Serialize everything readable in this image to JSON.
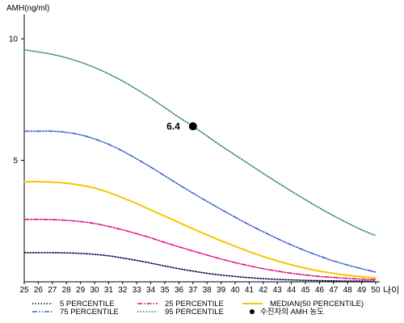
{
  "chart_data": {
    "type": "line",
    "ylabel": "AMH(ng/ml)",
    "xlabel": "나이",
    "xlim": [
      25,
      50
    ],
    "ylim": [
      0,
      11
    ],
    "x_ticks": [
      25,
      26,
      27,
      28,
      29,
      30,
      31,
      32,
      33,
      34,
      35,
      36,
      37,
      38,
      39,
      40,
      41,
      42,
      43,
      44,
      45,
      46,
      47,
      48,
      49,
      50
    ],
    "y_ticks": [
      5,
      10
    ],
    "x": [
      25,
      26,
      27,
      28,
      29,
      30,
      31,
      32,
      33,
      34,
      35,
      36,
      37,
      38,
      39,
      40,
      41,
      42,
      43,
      44,
      45,
      46,
      47,
      48,
      49,
      50
    ],
    "series": [
      {
        "name": "5 PERCENTILE",
        "color": "#0a0a50",
        "dash": "dotted",
        "values": [
          1.2,
          1.2,
          1.2,
          1.19,
          1.17,
          1.13,
          1.07,
          0.98,
          0.88,
          0.77,
          0.65,
          0.54,
          0.44,
          0.35,
          0.28,
          0.22,
          0.17,
          0.13,
          0.1,
          0.08,
          0.06,
          0.05,
          0.04,
          0.03,
          0.03,
          0.02
        ]
      },
      {
        "name": "25 PERCENTILE",
        "color": "#e0107f",
        "dash": "dashdot",
        "values": [
          2.57,
          2.57,
          2.56,
          2.53,
          2.48,
          2.4,
          2.28,
          2.14,
          1.98,
          1.81,
          1.62,
          1.44,
          1.27,
          1.1,
          0.94,
          0.79,
          0.66,
          0.54,
          0.44,
          0.35,
          0.28,
          0.22,
          0.18,
          0.14,
          0.11,
          0.09
        ]
      },
      {
        "name": "MEDIAN(50 PERCENTILE)",
        "color": "#f5c800",
        "dash": "solid",
        "values": [
          4.12,
          4.12,
          4.1,
          4.06,
          3.98,
          3.86,
          3.68,
          3.46,
          3.22,
          2.96,
          2.7,
          2.44,
          2.18,
          1.93,
          1.69,
          1.46,
          1.24,
          1.04,
          0.86,
          0.7,
          0.56,
          0.44,
          0.35,
          0.27,
          0.21,
          0.16
        ]
      },
      {
        "name": "75 PERCENTILE",
        "color": "#3a5fcd",
        "dash": "dashdotdot",
        "values": [
          6.2,
          6.2,
          6.2,
          6.15,
          6.05,
          5.88,
          5.66,
          5.38,
          5.06,
          4.72,
          4.36,
          4.0,
          3.65,
          3.31,
          2.98,
          2.66,
          2.35,
          2.06,
          1.78,
          1.52,
          1.28,
          1.06,
          0.86,
          0.69,
          0.54,
          0.4
        ]
      },
      {
        "name": "95 PERCENTILE",
        "color": "#2e8b57",
        "dash": "dotted",
        "values": [
          9.55,
          9.46,
          9.36,
          9.22,
          9.04,
          8.82,
          8.56,
          8.26,
          7.92,
          7.56,
          7.17,
          6.77,
          6.4,
          6.0,
          5.6,
          5.22,
          4.84,
          4.46,
          4.09,
          3.73,
          3.38,
          3.04,
          2.72,
          2.42,
          2.14,
          1.9
        ]
      }
    ],
    "marker": {
      "name": "수진자의 AMH 농도",
      "x": 37,
      "y": 6.4,
      "label": "6.4",
      "color": "#000000"
    },
    "legend_position": "bottom",
    "grid": false
  }
}
